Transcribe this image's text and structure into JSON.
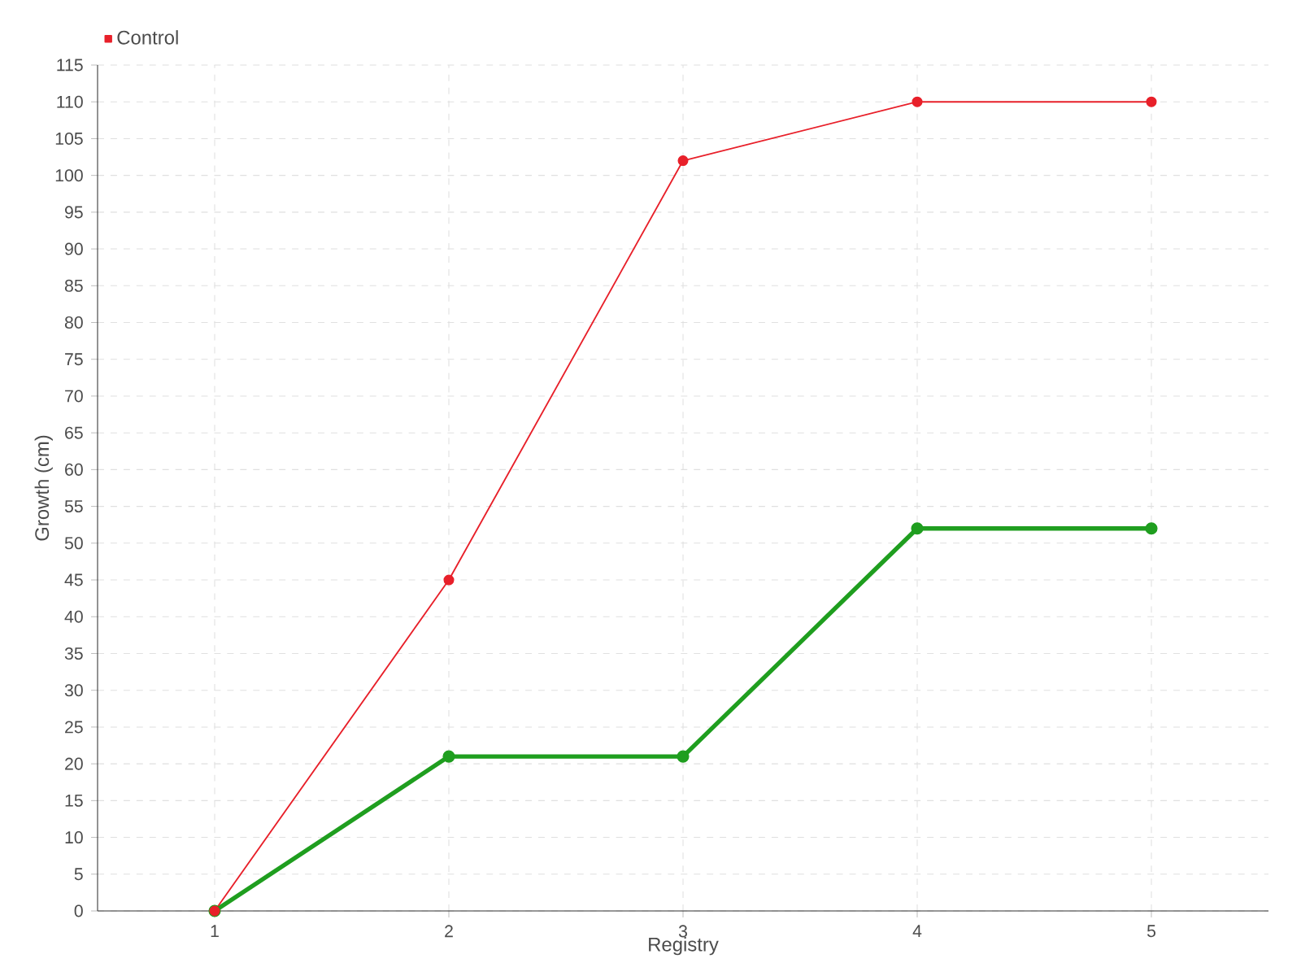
{
  "chart_data": {
    "type": "line",
    "xlabel": "Registry",
    "ylabel": "Growth (cm)",
    "x": [
      1,
      2,
      3,
      4,
      5
    ],
    "series": [
      {
        "color": "#1f9e1f",
        "values": [
          0,
          21,
          21,
          52,
          52
        ]
      },
      {
        "name": "Control",
        "color": "#e8202a",
        "values": [
          0,
          45,
          102,
          110,
          110
        ]
      }
    ],
    "xlim": [
      0.5,
      5.5
    ],
    "xticks": [
      1,
      2,
      3,
      4,
      5
    ],
    "ylim": [
      0,
      115
    ],
    "yticks": [
      0,
      5,
      10,
      15,
      20,
      25,
      30,
      35,
      40,
      45,
      50,
      55,
      60,
      65,
      70,
      75,
      80,
      85,
      90,
      95,
      100,
      105,
      110,
      115
    ],
    "grid": true,
    "legend": "top left",
    "marker": "circle",
    "line_style": "solid"
  }
}
